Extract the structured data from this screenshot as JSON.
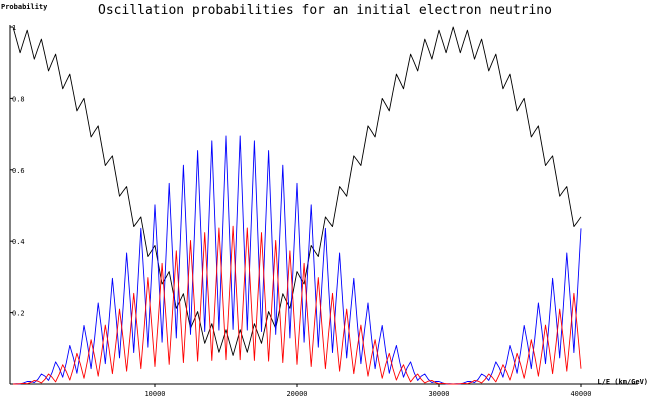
{
  "chart_data": {
    "type": "line",
    "title": "Oscillation probabilities for an initial electron neutrino",
    "y_label": "Probability",
    "x_label": "L/E (km/GeV)",
    "xlim": [
      0,
      44000
    ],
    "ylim": [
      0,
      1
    ],
    "xticks": [
      10000,
      20000,
      30000,
      40000
    ],
    "yticks": [
      0.2,
      0.4,
      0.6,
      0.8,
      1
    ],
    "x": [
      0,
      250,
      500,
      750,
      1000,
      1250,
      1500,
      1750,
      2000,
      2250,
      2500,
      2750,
      3000,
      3250,
      3500,
      3750,
      4000,
      4250,
      4500,
      4750,
      5000,
      5250,
      5500,
      5750,
      6000,
      6250,
      6500,
      6750,
      7000,
      7250,
      7500,
      7750,
      8000,
      8250,
      8500,
      8750,
      9000,
      9250,
      9500,
      9750,
      10000,
      10250,
      10500,
      10750,
      11000,
      11250,
      11500,
      11750,
      12000,
      12250,
      12500,
      12750,
      13000,
      13250,
      13500,
      13750,
      14000,
      14250,
      14500,
      14750,
      15000,
      15250,
      15500,
      15750,
      16000,
      16250,
      16500,
      16750,
      17000,
      17250,
      17500,
      17750,
      18000,
      18250,
      18500,
      18750,
      19000,
      19250,
      19500,
      19750,
      20000,
      20250,
      20500,
      20750,
      21000,
      21250,
      21500,
      21750,
      22000,
      22250,
      22500,
      22750,
      23000,
      23250,
      23500,
      23750,
      24000,
      24250,
      24500,
      24750,
      25000,
      25250,
      25500,
      25750,
      26000,
      26250,
      26500,
      26750,
      27000,
      27250,
      27500,
      27750,
      28000,
      28250,
      28500,
      28750,
      29000,
      29250,
      29500,
      29750,
      30000,
      30250,
      30500,
      30750,
      31000,
      31250,
      31500,
      31750,
      32000,
      32250,
      32500,
      32750,
      33000,
      33250,
      33500,
      33750,
      34000,
      34250,
      34500,
      34750,
      35000,
      35250,
      35500,
      35750,
      36000,
      36250,
      36500,
      36750,
      37000,
      37250,
      37500,
      37750,
      38000,
      38250,
      38500,
      38750,
      39000,
      39250,
      39500,
      39750,
      40000
    ],
    "series": [
      {
        "color": "#000000",
        "values": [
          1,
          0.964,
          0.928,
          0.96,
          0.991,
          0.951,
          0.91,
          0.939,
          0.966,
          0.922,
          0.877,
          0.901,
          0.924,
          0.876,
          0.827,
          0.848,
          0.868,
          0.817,
          0.765,
          0.783,
          0.8,
          0.746,
          0.692,
          0.708,
          0.723,
          0.667,
          0.612,
          0.626,
          0.639,
          0.583,
          0.526,
          0.54,
          0.553,
          0.497,
          0.441,
          0.454,
          0.468,
          0.413,
          0.357,
          0.372,
          0.388,
          0.334,
          0.28,
          0.297,
          0.315,
          0.263,
          0.212,
          0.232,
          0.253,
          0.204,
          0.156,
          0.179,
          0.203,
          0.158,
          0.114,
          0.141,
          0.169,
          0.129,
          0.089,
          0.12,
          0.152,
          0.116,
          0.08,
          0.116,
          0.152,
          0.12,
          0.089,
          0.129,
          0.169,
          0.141,
          0.114,
          0.158,
          0.203,
          0.179,
          0.156,
          0.204,
          0.253,
          0.232,
          0.212,
          0.263,
          0.315,
          0.297,
          0.28,
          0.334,
          0.388,
          0.372,
          0.357,
          0.413,
          0.468,
          0.454,
          0.441,
          0.497,
          0.553,
          0.54,
          0.526,
          0.583,
          0.639,
          0.626,
          0.612,
          0.667,
          0.723,
          0.708,
          0.692,
          0.746,
          0.8,
          0.783,
          0.765,
          0.817,
          0.868,
          0.848,
          0.827,
          0.876,
          0.924,
          0.901,
          0.877,
          0.922,
          0.966,
          0.939,
          0.91,
          0.951,
          0.991,
          0.96,
          0.928,
          0.964,
          1,
          0.964,
          0.928,
          0.96,
          0.991,
          0.951,
          0.91,
          0.939,
          0.966,
          0.922,
          0.877,
          0.901,
          0.924,
          0.876,
          0.827,
          0.848,
          0.868,
          0.817,
          0.765,
          0.783,
          0.8,
          0.746,
          0.692,
          0.708,
          0.723,
          0.667,
          0.612,
          0.626,
          0.639,
          0.583,
          0.526,
          0.54,
          0.553,
          0.497,
          0.441,
          0.454,
          0.468
        ]
      },
      {
        "color": "#0000ff",
        "values": [
          0,
          0.001,
          0,
          0.003,
          0.007,
          0.007,
          0.004,
          0.013,
          0.028,
          0.022,
          0.01,
          0.032,
          0.062,
          0.045,
          0.019,
          0.059,
          0.108,
          0.074,
          0.03,
          0.091,
          0.164,
          0.11,
          0.043,
          0.129,
          0.227,
          0.149,
          0.057,
          0.17,
          0.296,
          0.191,
          0.073,
          0.213,
          0.367,
          0.234,
          0.088,
          0.256,
          0.436,
          0.276,
          0.103,
          0.297,
          0.502,
          0.316,
          0.117,
          0.334,
          0.562,
          0.351,
          0.129,
          0.367,
          0.613,
          0.381,
          0.139,
          0.393,
          0.654,
          0.404,
          0.147,
          0.412,
          0.681,
          0.418,
          0.151,
          0.423,
          0.695,
          0.425,
          0.153,
          0.425,
          0.695,
          0.423,
          0.151,
          0.418,
          0.681,
          0.412,
          0.147,
          0.404,
          0.654,
          0.393,
          0.139,
          0.381,
          0.613,
          0.367,
          0.129,
          0.351,
          0.562,
          0.334,
          0.117,
          0.316,
          0.502,
          0.297,
          0.103,
          0.276,
          0.436,
          0.256,
          0.088,
          0.234,
          0.367,
          0.213,
          0.073,
          0.191,
          0.296,
          0.17,
          0.057,
          0.149,
          0.227,
          0.129,
          0.043,
          0.11,
          0.164,
          0.091,
          0.03,
          0.074,
          0.108,
          0.059,
          0.019,
          0.045,
          0.062,
          0.032,
          0.01,
          0.022,
          0.028,
          0.013,
          0.004,
          0.007,
          0.007,
          0.003,
          0,
          0.001,
          0,
          0.001,
          0,
          0.003,
          0.007,
          0.007,
          0.004,
          0.013,
          0.028,
          0.022,
          0.01,
          0.032,
          0.062,
          0.045,
          0.019,
          0.059,
          0.108,
          0.074,
          0.03,
          0.091,
          0.164,
          0.11,
          0.043,
          0.129,
          0.227,
          0.149,
          0.057,
          0.17,
          0.296,
          0.191,
          0.073,
          0.213,
          0.367,
          0.234,
          0.088,
          0.256,
          0.436
        ]
      },
      {
        "color": "#ff0000",
        "values": [
          0,
          0,
          0.001,
          0.002,
          0.001,
          0.004,
          0.01,
          0.008,
          0.003,
          0.013,
          0.028,
          0.019,
          0.006,
          0.027,
          0.054,
          0.035,
          0.011,
          0.044,
          0.086,
          0.055,
          0.016,
          0.066,
          0.124,
          0.077,
          0.022,
          0.089,
          0.165,
          0.102,
          0.029,
          0.115,
          0.21,
          0.128,
          0.036,
          0.14,
          0.254,
          0.153,
          0.043,
          0.166,
          0.298,
          0.178,
          0.049,
          0.189,
          0.338,
          0.2,
          0.055,
          0.211,
          0.373,
          0.22,
          0.06,
          0.228,
          0.402,
          0.236,
          0.064,
          0.242,
          0.424,
          0.247,
          0.066,
          0.251,
          0.437,
          0.254,
          0.068,
          0.255,
          0.442,
          0.255,
          0.068,
          0.254,
          0.437,
          0.251,
          0.066,
          0.247,
          0.424,
          0.242,
          0.064,
          0.236,
          0.402,
          0.228,
          0.06,
          0.22,
          0.373,
          0.211,
          0.055,
          0.2,
          0.338,
          0.189,
          0.049,
          0.178,
          0.298,
          0.166,
          0.043,
          0.153,
          0.254,
          0.14,
          0.036,
          0.128,
          0.21,
          0.115,
          0.029,
          0.102,
          0.165,
          0.089,
          0.022,
          0.077,
          0.124,
          0.066,
          0.016,
          0.055,
          0.086,
          0.044,
          0.011,
          0.035,
          0.054,
          0.027,
          0.006,
          0.019,
          0.028,
          0.013,
          0.003,
          0.008,
          0.01,
          0.004,
          0.001,
          0.002,
          0.001,
          0,
          0,
          0,
          0.001,
          0.002,
          0.001,
          0.004,
          0.01,
          0.008,
          0.003,
          0.013,
          0.028,
          0.019,
          0.006,
          0.027,
          0.054,
          0.035,
          0.011,
          0.044,
          0.086,
          0.055,
          0.016,
          0.066,
          0.124,
          0.077,
          0.022,
          0.089,
          0.165,
          0.102,
          0.029,
          0.115,
          0.21,
          0.128,
          0.036,
          0.14,
          0.254,
          0.153,
          0.043
        ]
      }
    ]
  }
}
